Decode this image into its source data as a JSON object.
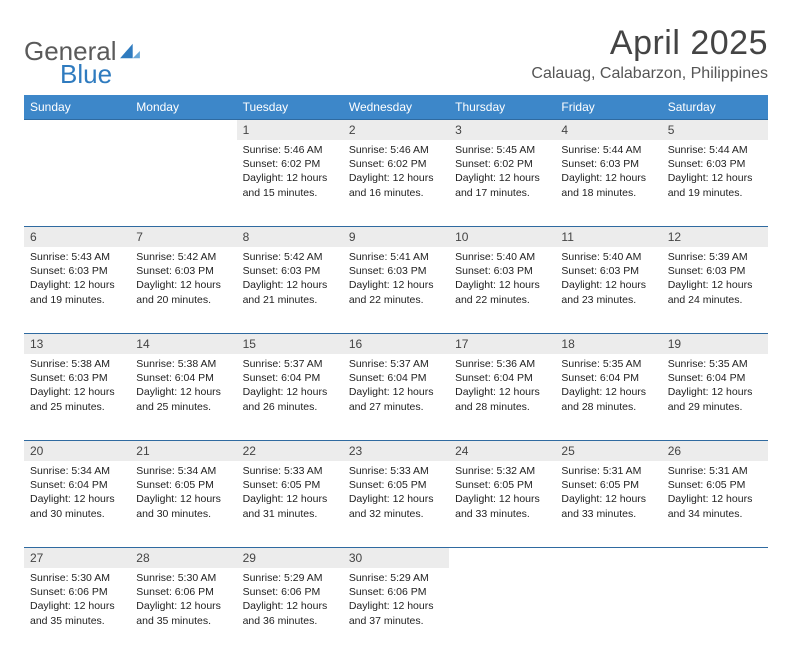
{
  "brand": {
    "part1": "General",
    "part2": "Blue"
  },
  "title": "April 2025",
  "location": "Calauag, Calabarzon, Philippines",
  "style": {
    "header_bg": "#3d87c9",
    "header_fg": "#ffffff",
    "daynum_bg": "#ececec",
    "rule_color": "#2f6aa0",
    "body_font_size": 10.5,
    "th_font_size": 12,
    "title_font_size": 34,
    "location_font_size": 16,
    "logo_font_size": 26
  },
  "weekdays": [
    "Sunday",
    "Monday",
    "Tuesday",
    "Wednesday",
    "Thursday",
    "Friday",
    "Saturday"
  ],
  "weeks": [
    [
      null,
      null,
      {
        "n": "1",
        "sr": "Sunrise: 5:46 AM",
        "ss": "Sunset: 6:02 PM",
        "d1": "Daylight: 12 hours",
        "d2": "and 15 minutes."
      },
      {
        "n": "2",
        "sr": "Sunrise: 5:46 AM",
        "ss": "Sunset: 6:02 PM",
        "d1": "Daylight: 12 hours",
        "d2": "and 16 minutes."
      },
      {
        "n": "3",
        "sr": "Sunrise: 5:45 AM",
        "ss": "Sunset: 6:02 PM",
        "d1": "Daylight: 12 hours",
        "d2": "and 17 minutes."
      },
      {
        "n": "4",
        "sr": "Sunrise: 5:44 AM",
        "ss": "Sunset: 6:03 PM",
        "d1": "Daylight: 12 hours",
        "d2": "and 18 minutes."
      },
      {
        "n": "5",
        "sr": "Sunrise: 5:44 AM",
        "ss": "Sunset: 6:03 PM",
        "d1": "Daylight: 12 hours",
        "d2": "and 19 minutes."
      }
    ],
    [
      {
        "n": "6",
        "sr": "Sunrise: 5:43 AM",
        "ss": "Sunset: 6:03 PM",
        "d1": "Daylight: 12 hours",
        "d2": "and 19 minutes."
      },
      {
        "n": "7",
        "sr": "Sunrise: 5:42 AM",
        "ss": "Sunset: 6:03 PM",
        "d1": "Daylight: 12 hours",
        "d2": "and 20 minutes."
      },
      {
        "n": "8",
        "sr": "Sunrise: 5:42 AM",
        "ss": "Sunset: 6:03 PM",
        "d1": "Daylight: 12 hours",
        "d2": "and 21 minutes."
      },
      {
        "n": "9",
        "sr": "Sunrise: 5:41 AM",
        "ss": "Sunset: 6:03 PM",
        "d1": "Daylight: 12 hours",
        "d2": "and 22 minutes."
      },
      {
        "n": "10",
        "sr": "Sunrise: 5:40 AM",
        "ss": "Sunset: 6:03 PM",
        "d1": "Daylight: 12 hours",
        "d2": "and 22 minutes."
      },
      {
        "n": "11",
        "sr": "Sunrise: 5:40 AM",
        "ss": "Sunset: 6:03 PM",
        "d1": "Daylight: 12 hours",
        "d2": "and 23 minutes."
      },
      {
        "n": "12",
        "sr": "Sunrise: 5:39 AM",
        "ss": "Sunset: 6:03 PM",
        "d1": "Daylight: 12 hours",
        "d2": "and 24 minutes."
      }
    ],
    [
      {
        "n": "13",
        "sr": "Sunrise: 5:38 AM",
        "ss": "Sunset: 6:03 PM",
        "d1": "Daylight: 12 hours",
        "d2": "and 25 minutes."
      },
      {
        "n": "14",
        "sr": "Sunrise: 5:38 AM",
        "ss": "Sunset: 6:04 PM",
        "d1": "Daylight: 12 hours",
        "d2": "and 25 minutes."
      },
      {
        "n": "15",
        "sr": "Sunrise: 5:37 AM",
        "ss": "Sunset: 6:04 PM",
        "d1": "Daylight: 12 hours",
        "d2": "and 26 minutes."
      },
      {
        "n": "16",
        "sr": "Sunrise: 5:37 AM",
        "ss": "Sunset: 6:04 PM",
        "d1": "Daylight: 12 hours",
        "d2": "and 27 minutes."
      },
      {
        "n": "17",
        "sr": "Sunrise: 5:36 AM",
        "ss": "Sunset: 6:04 PM",
        "d1": "Daylight: 12 hours",
        "d2": "and 28 minutes."
      },
      {
        "n": "18",
        "sr": "Sunrise: 5:35 AM",
        "ss": "Sunset: 6:04 PM",
        "d1": "Daylight: 12 hours",
        "d2": "and 28 minutes."
      },
      {
        "n": "19",
        "sr": "Sunrise: 5:35 AM",
        "ss": "Sunset: 6:04 PM",
        "d1": "Daylight: 12 hours",
        "d2": "and 29 minutes."
      }
    ],
    [
      {
        "n": "20",
        "sr": "Sunrise: 5:34 AM",
        "ss": "Sunset: 6:04 PM",
        "d1": "Daylight: 12 hours",
        "d2": "and 30 minutes."
      },
      {
        "n": "21",
        "sr": "Sunrise: 5:34 AM",
        "ss": "Sunset: 6:05 PM",
        "d1": "Daylight: 12 hours",
        "d2": "and 30 minutes."
      },
      {
        "n": "22",
        "sr": "Sunrise: 5:33 AM",
        "ss": "Sunset: 6:05 PM",
        "d1": "Daylight: 12 hours",
        "d2": "and 31 minutes."
      },
      {
        "n": "23",
        "sr": "Sunrise: 5:33 AM",
        "ss": "Sunset: 6:05 PM",
        "d1": "Daylight: 12 hours",
        "d2": "and 32 minutes."
      },
      {
        "n": "24",
        "sr": "Sunrise: 5:32 AM",
        "ss": "Sunset: 6:05 PM",
        "d1": "Daylight: 12 hours",
        "d2": "and 33 minutes."
      },
      {
        "n": "25",
        "sr": "Sunrise: 5:31 AM",
        "ss": "Sunset: 6:05 PM",
        "d1": "Daylight: 12 hours",
        "d2": "and 33 minutes."
      },
      {
        "n": "26",
        "sr": "Sunrise: 5:31 AM",
        "ss": "Sunset: 6:05 PM",
        "d1": "Daylight: 12 hours",
        "d2": "and 34 minutes."
      }
    ],
    [
      {
        "n": "27",
        "sr": "Sunrise: 5:30 AM",
        "ss": "Sunset: 6:06 PM",
        "d1": "Daylight: 12 hours",
        "d2": "and 35 minutes."
      },
      {
        "n": "28",
        "sr": "Sunrise: 5:30 AM",
        "ss": "Sunset: 6:06 PM",
        "d1": "Daylight: 12 hours",
        "d2": "and 35 minutes."
      },
      {
        "n": "29",
        "sr": "Sunrise: 5:29 AM",
        "ss": "Sunset: 6:06 PM",
        "d1": "Daylight: 12 hours",
        "d2": "and 36 minutes."
      },
      {
        "n": "30",
        "sr": "Sunrise: 5:29 AM",
        "ss": "Sunset: 6:06 PM",
        "d1": "Daylight: 12 hours",
        "d2": "and 37 minutes."
      },
      null,
      null,
      null
    ]
  ]
}
